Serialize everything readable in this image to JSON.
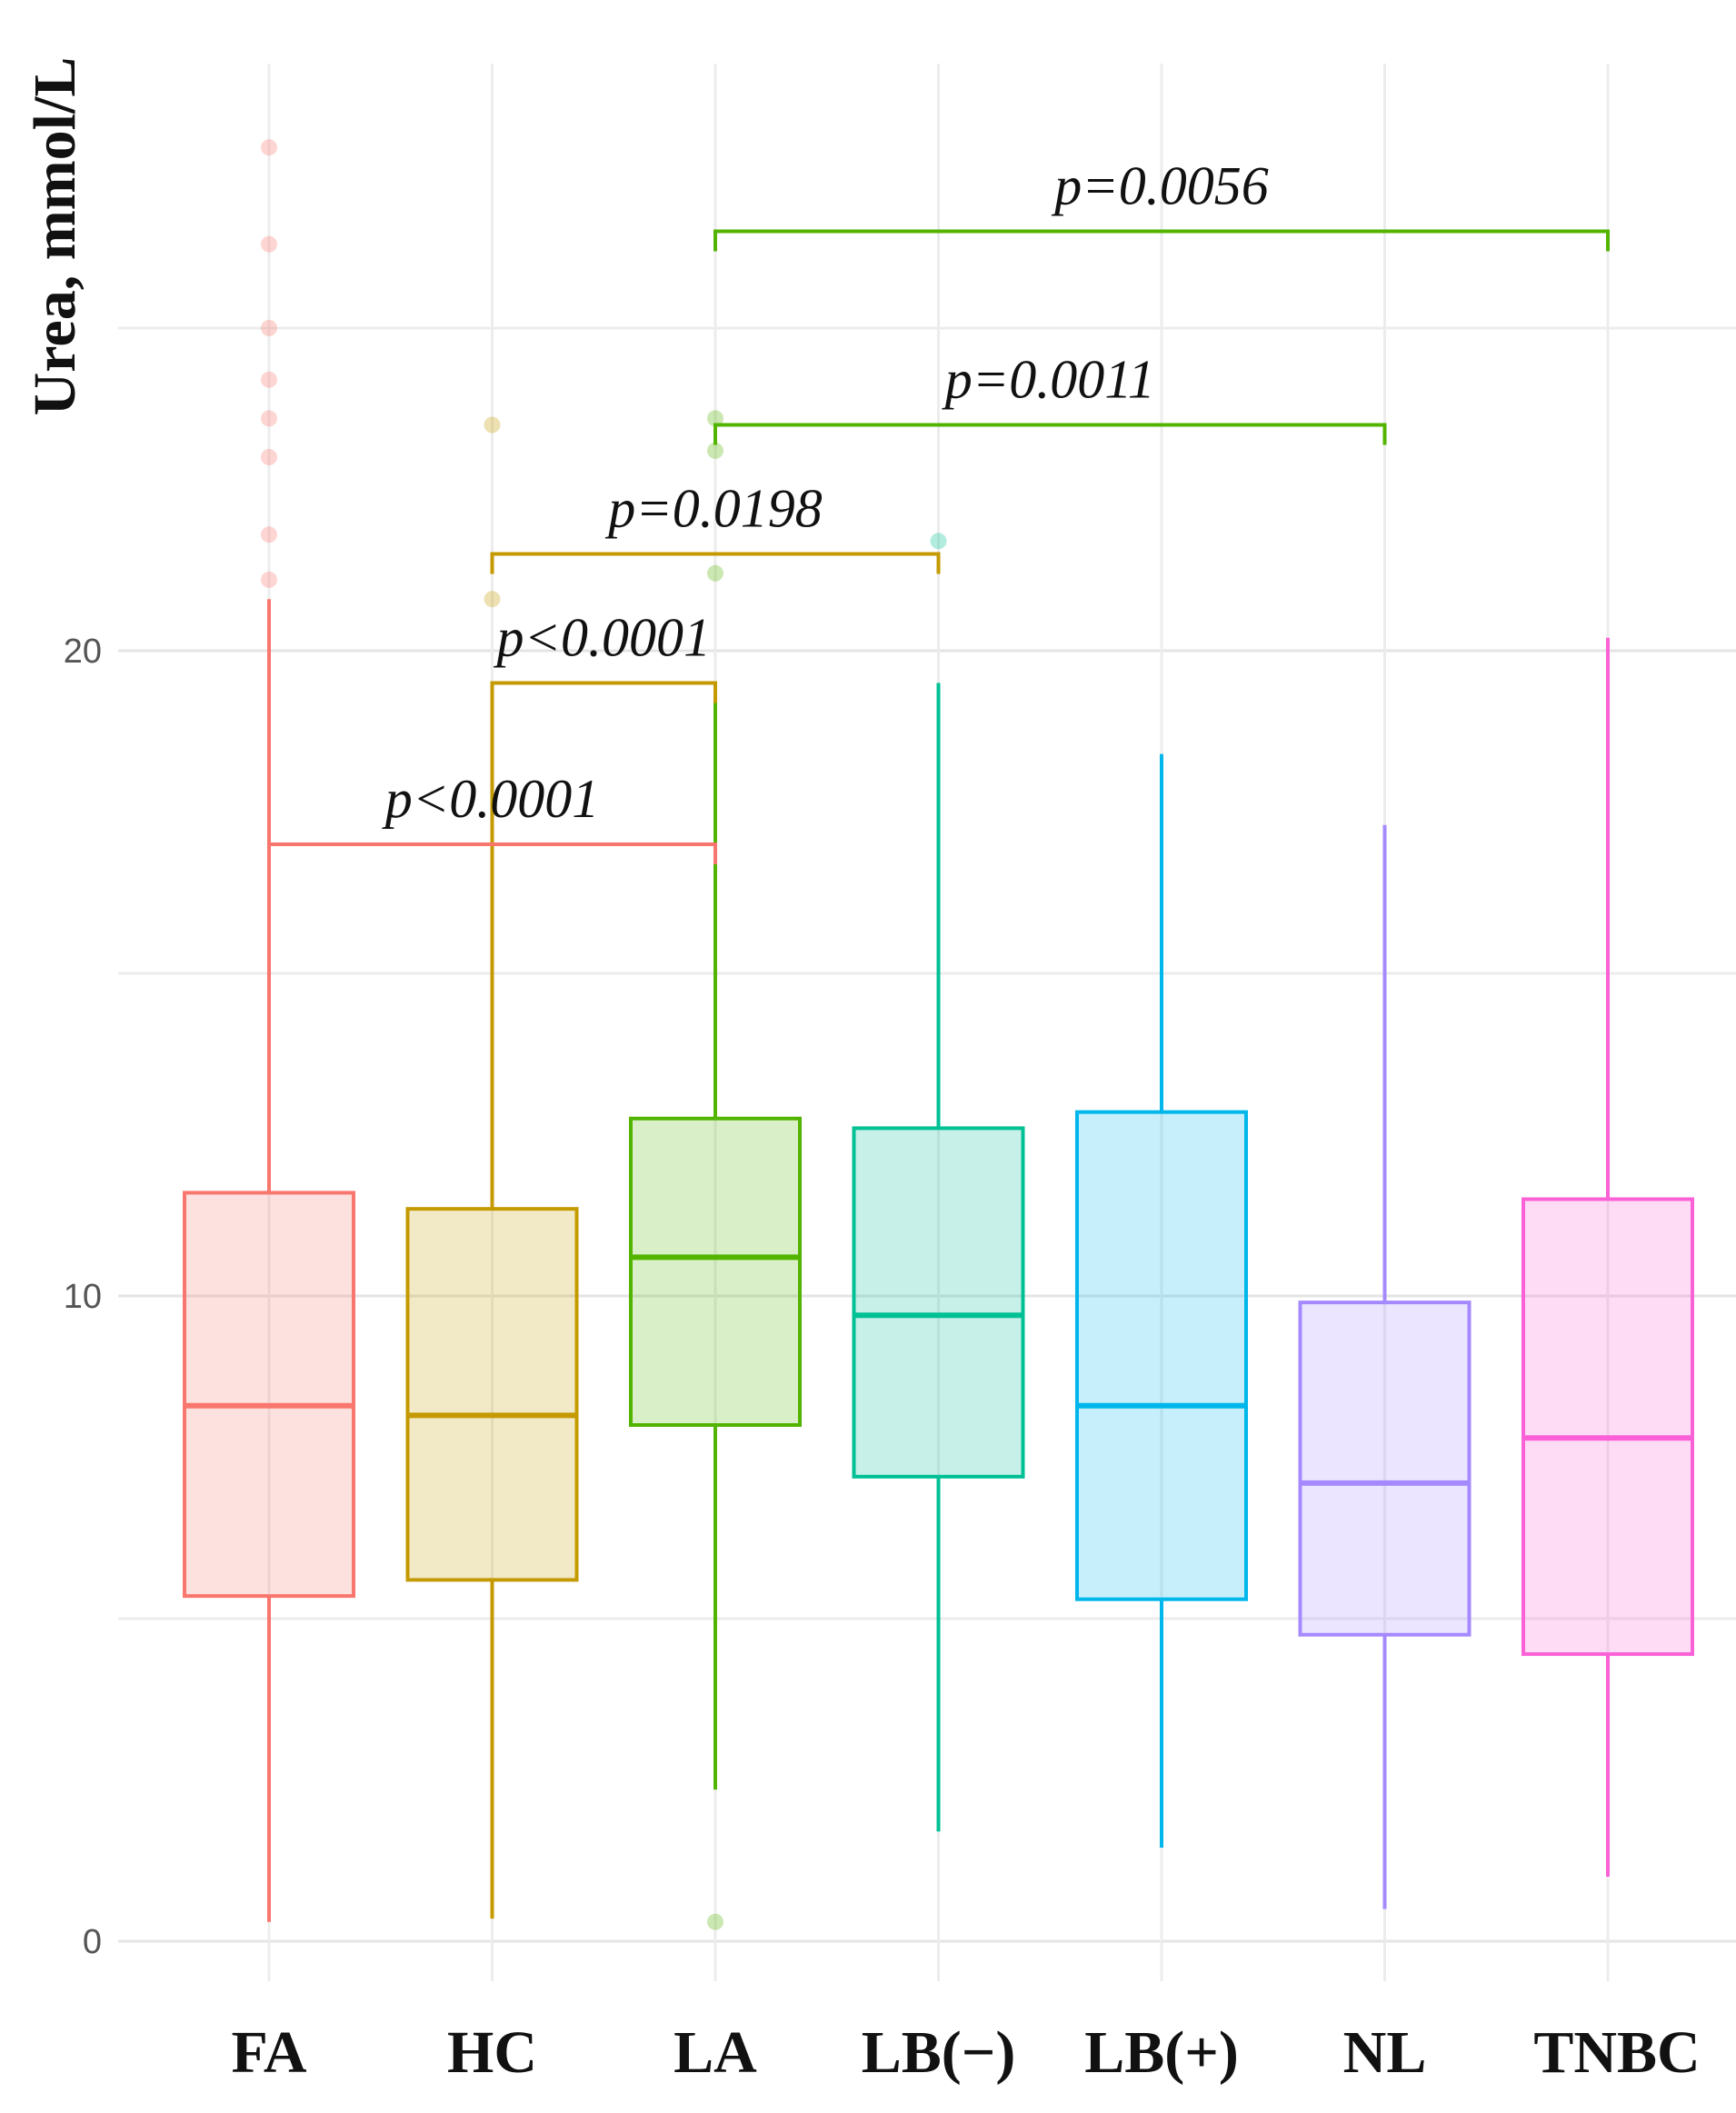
{
  "chart_data": {
    "type": "box",
    "title": "",
    "xlabel": "",
    "ylabel": "Urea, mmol/L",
    "ylim": [
      -1.1,
      29.5
    ],
    "yticks": [
      0,
      10,
      20
    ],
    "grid": true,
    "categories": [
      "FA",
      "HC",
      "LA",
      "LB(−)",
      "LB(+)",
      "NL",
      "TNBC"
    ],
    "colors": [
      "#F8766D",
      "#C49A00",
      "#53B400",
      "#00C094",
      "#00B6EB",
      "#A58AFF",
      "#FB61D7"
    ],
    "boxes": [
      {
        "group": "FA",
        "whisker_low": 0.3,
        "q1": 5.35,
        "median": 8.3,
        "q3": 11.6,
        "whisker_high": 20.8,
        "outliers": [
          21.1,
          21.8,
          23.0,
          23.6,
          24.2,
          25.0,
          26.3,
          27.8
        ]
      },
      {
        "group": "HC",
        "whisker_low": 0.35,
        "q1": 5.6,
        "median": 8.15,
        "q3": 11.35,
        "whisker_high": 19.5,
        "outliers": [
          20.8,
          23.5
        ]
      },
      {
        "group": "LA",
        "whisker_low": 2.35,
        "q1": 8.0,
        "median": 10.6,
        "q3": 12.75,
        "whisker_high": 19.5,
        "outliers": [
          0.3,
          21.2,
          23.1,
          23.6
        ]
      },
      {
        "group": "LB(−)",
        "whisker_low": 1.7,
        "q1": 7.2,
        "median": 9.7,
        "q3": 12.6,
        "whisker_high": 19.5,
        "outliers": [
          21.7
        ]
      },
      {
        "group": "LB(+)",
        "whisker_low": 1.45,
        "q1": 5.3,
        "median": 8.3,
        "q3": 12.85,
        "whisker_high": 18.4,
        "outliers": []
      },
      {
        "group": "NL",
        "whisker_low": 0.5,
        "q1": 4.75,
        "median": 7.1,
        "q3": 9.9,
        "whisker_high": 17.3,
        "outliers": []
      },
      {
        "group": "TNBC",
        "whisker_low": 1.0,
        "q1": 4.45,
        "median": 7.8,
        "q3": 11.5,
        "whisker_high": 20.2,
        "outliers": []
      }
    ],
    "comparisons": [
      {
        "from": "FA",
        "to": "LA",
        "label": "p<0.0001",
        "y": 17.0,
        "color": "#F8766D"
      },
      {
        "from": "HC",
        "to": "LA",
        "label": "p<0.0001",
        "y": 19.5,
        "color": "#C49A00"
      },
      {
        "from": "HC",
        "to": "LB(−)",
        "label": "p=0.0198",
        "y": 21.5,
        "color": "#C49A00"
      },
      {
        "from": "LA",
        "to": "NL",
        "label": "p=0.0011",
        "y": 23.5,
        "color": "#53B400"
      },
      {
        "from": "LA",
        "to": "TNBC",
        "label": "p=0.0056",
        "y": 26.5,
        "color": "#53B400"
      }
    ]
  }
}
